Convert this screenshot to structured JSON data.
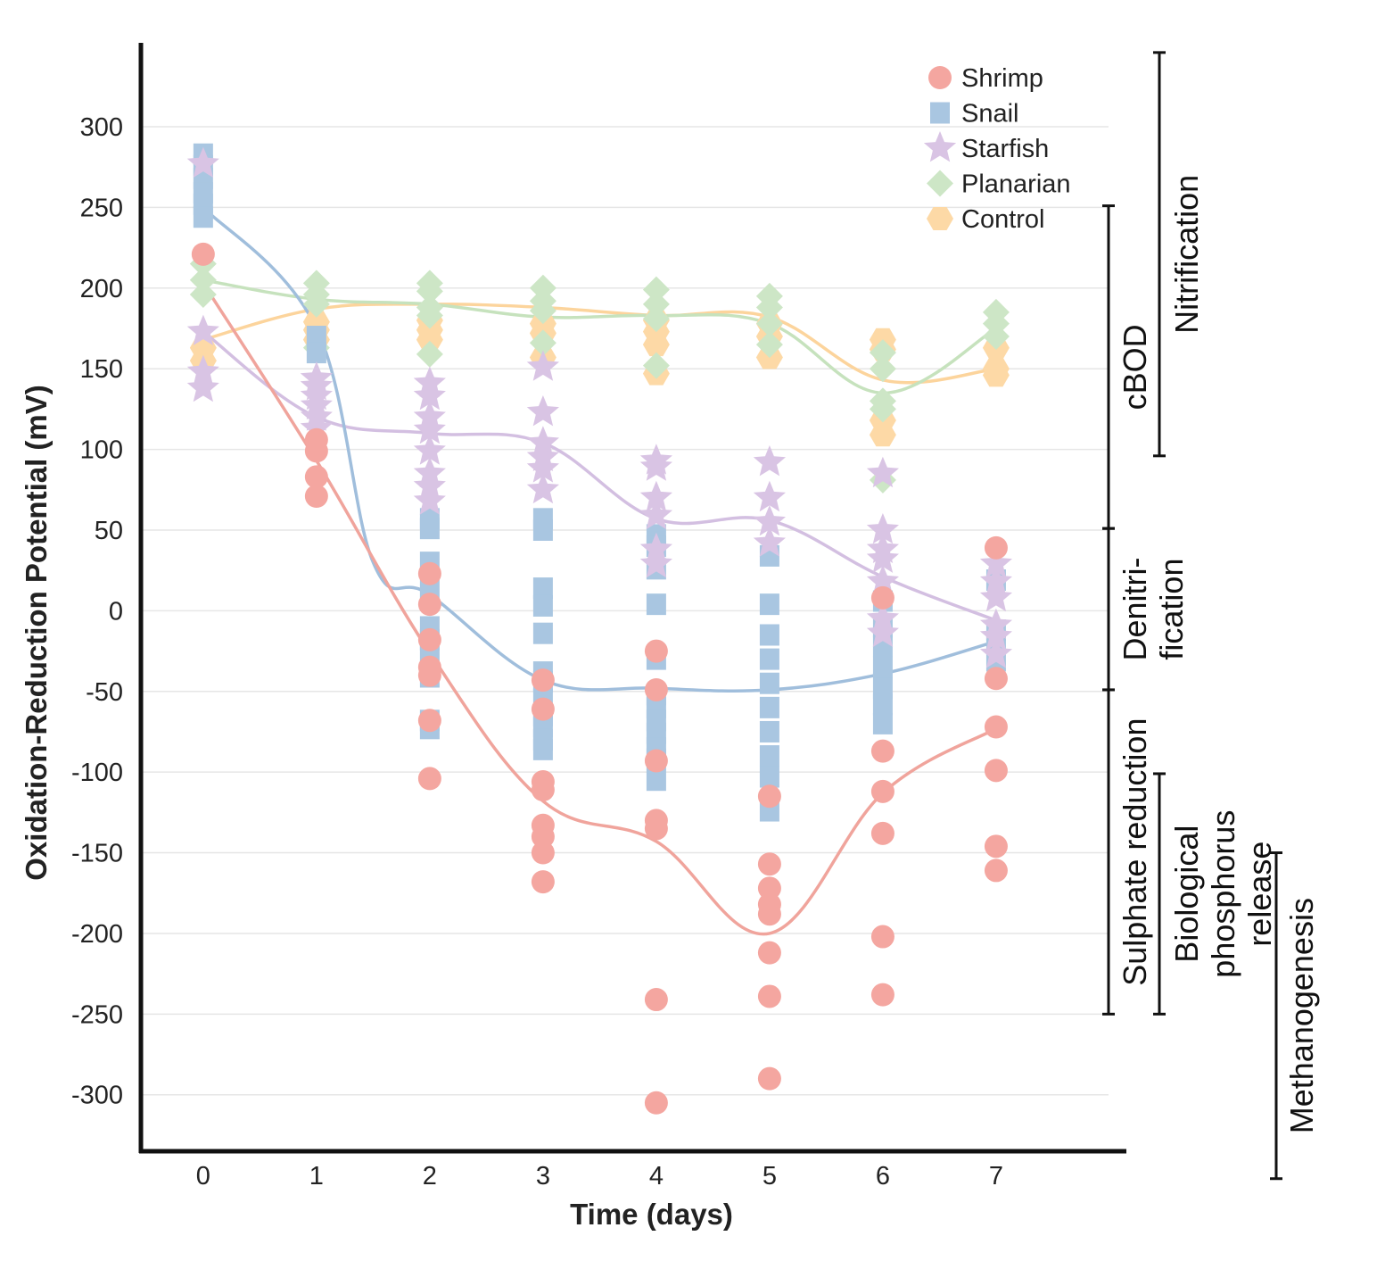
{
  "chart_data": {
    "type": "scatter",
    "xlabel": "Time (days)",
    "ylabel": "Oxidation-Reduction Potential (mV)",
    "xlim": [
      -0.55,
      8.15
    ],
    "ylim": [
      -335,
      352
    ],
    "x_ticks": [
      "0",
      "1",
      "2",
      "3",
      "4",
      "5",
      "6",
      "7"
    ],
    "y_ticks": [
      "300",
      "250",
      "200",
      "150",
      "100",
      "50",
      "0",
      "-50",
      "-100",
      "-150",
      "-200",
      "-250",
      "-300"
    ],
    "grid": true,
    "legend_position": "top-right",
    "series": [
      {
        "name": "Shrimp",
        "marker": "circle",
        "color": "#f4a6a0",
        "line_color": "#f0a49c",
        "points": [
          [
            0,
            221
          ],
          [
            1,
            106
          ],
          [
            1,
            99
          ],
          [
            1,
            83
          ],
          [
            1,
            71
          ],
          [
            2,
            23
          ],
          [
            2,
            4
          ],
          [
            2,
            -18
          ],
          [
            2,
            -35
          ],
          [
            2,
            -40
          ],
          [
            2,
            -68
          ],
          [
            2,
            -104
          ],
          [
            3,
            -43
          ],
          [
            3,
            -61
          ],
          [
            3,
            -106
          ],
          [
            3,
            -111
          ],
          [
            3,
            -133
          ],
          [
            3,
            -140
          ],
          [
            3,
            -150
          ],
          [
            3,
            -168
          ],
          [
            4,
            -25
          ],
          [
            4,
            -49
          ],
          [
            4,
            -93
          ],
          [
            4,
            -130
          ],
          [
            4,
            -135
          ],
          [
            4,
            -241
          ],
          [
            4,
            -305
          ],
          [
            5,
            -115
          ],
          [
            5,
            -157
          ],
          [
            5,
            -172
          ],
          [
            5,
            -182
          ],
          [
            5,
            -188
          ],
          [
            5,
            -212
          ],
          [
            5,
            -239
          ],
          [
            5,
            -290
          ],
          [
            6,
            8
          ],
          [
            6,
            -87
          ],
          [
            6,
            -112
          ],
          [
            6,
            -138
          ],
          [
            6,
            -202
          ],
          [
            6,
            -238
          ],
          [
            7,
            39
          ],
          [
            7,
            -42
          ],
          [
            7,
            -72
          ],
          [
            7,
            -99
          ],
          [
            7,
            -146
          ],
          [
            7,
            -161
          ]
        ],
        "trend": [
          [
            0,
            203
          ],
          [
            1,
            93
          ],
          [
            2,
            -26
          ],
          [
            3,
            -118
          ],
          [
            4,
            -143
          ],
          [
            5,
            -200
          ],
          [
            6,
            -113
          ],
          [
            7,
            -73
          ]
        ]
      },
      {
        "name": "Snail",
        "marker": "square",
        "color": "#a9c6e1",
        "line_color": "#a0bedc",
        "points": [
          [
            0,
            283
          ],
          [
            0,
            276
          ],
          [
            0,
            268
          ],
          [
            0,
            259
          ],
          [
            0,
            252
          ],
          [
            0,
            244
          ],
          [
            1,
            170
          ],
          [
            1,
            160
          ],
          [
            2,
            57
          ],
          [
            2,
            51
          ],
          [
            2,
            30
          ],
          [
            2,
            14
          ],
          [
            2,
            -10
          ],
          [
            2,
            -18
          ],
          [
            2,
            -26
          ],
          [
            2,
            -41
          ],
          [
            2,
            -68
          ],
          [
            2,
            -73
          ],
          [
            3,
            57
          ],
          [
            3,
            50
          ],
          [
            3,
            14
          ],
          [
            3,
            3
          ],
          [
            3,
            -14
          ],
          [
            3,
            -38
          ],
          [
            3,
            -44
          ],
          [
            3,
            -55
          ],
          [
            3,
            -65
          ],
          [
            3,
            -72
          ],
          [
            3,
            -80
          ],
          [
            3,
            -86
          ],
          [
            4,
            47
          ],
          [
            4,
            40
          ],
          [
            4,
            26
          ],
          [
            4,
            4
          ],
          [
            4,
            -30
          ],
          [
            4,
            -52
          ],
          [
            4,
            -60
          ],
          [
            4,
            -68
          ],
          [
            4,
            -76
          ],
          [
            4,
            -85
          ],
          [
            4,
            -92
          ],
          [
            4,
            -105
          ],
          [
            5,
            34
          ],
          [
            5,
            4
          ],
          [
            5,
            -15
          ],
          [
            5,
            -30
          ],
          [
            5,
            -45
          ],
          [
            5,
            -60
          ],
          [
            5,
            -75
          ],
          [
            5,
            -90
          ],
          [
            5,
            -103
          ],
          [
            5,
            -124
          ],
          [
            6,
            6
          ],
          [
            6,
            -10
          ],
          [
            6,
            -22
          ],
          [
            6,
            -35
          ],
          [
            6,
            -48
          ],
          [
            6,
            -58
          ],
          [
            6,
            -70
          ],
          [
            7,
            19
          ],
          [
            7,
            -12
          ],
          [
            7,
            -19
          ],
          [
            7,
            -31
          ]
        ],
        "trend": [
          [
            0,
            250
          ],
          [
            1,
            175
          ],
          [
            1.5,
            30
          ],
          [
            2,
            10
          ],
          [
            3,
            -43
          ],
          [
            4,
            -48
          ],
          [
            5,
            -49
          ],
          [
            6,
            -39
          ],
          [
            7,
            -19
          ]
        ]
      },
      {
        "name": "Starfish",
        "marker": "star",
        "color": "#d9c4e4",
        "line_color": "#d3bfe1",
        "points": [
          [
            0,
            277
          ],
          [
            0,
            173
          ],
          [
            0,
            148
          ],
          [
            0,
            138
          ],
          [
            1,
            144
          ],
          [
            1,
            139
          ],
          [
            1,
            133
          ],
          [
            1,
            127
          ],
          [
            1,
            120
          ],
          [
            1,
            113
          ],
          [
            2,
            141
          ],
          [
            2,
            133
          ],
          [
            2,
            120
          ],
          [
            2,
            112
          ],
          [
            2,
            99
          ],
          [
            2,
            85
          ],
          [
            2,
            77
          ],
          [
            2,
            68
          ],
          [
            3,
            151
          ],
          [
            3,
            123
          ],
          [
            3,
            104
          ],
          [
            3,
            95
          ],
          [
            3,
            88
          ],
          [
            3,
            75
          ],
          [
            4,
            93
          ],
          [
            4,
            89
          ],
          [
            4,
            70
          ],
          [
            4,
            59
          ],
          [
            4,
            38
          ],
          [
            4,
            29
          ],
          [
            5,
            92
          ],
          [
            5,
            70
          ],
          [
            5,
            55
          ],
          [
            5,
            42
          ],
          [
            6,
            85
          ],
          [
            6,
            50
          ],
          [
            6,
            38
          ],
          [
            6,
            32
          ],
          [
            6,
            18
          ],
          [
            6,
            -5
          ],
          [
            6,
            -14
          ],
          [
            7,
            29
          ],
          [
            7,
            18
          ],
          [
            7,
            8
          ],
          [
            7,
            -9
          ],
          [
            7,
            -16
          ],
          [
            7,
            -27
          ]
        ],
        "trend": [
          [
            0,
            173
          ],
          [
            1,
            120
          ],
          [
            2,
            110
          ],
          [
            3,
            104
          ],
          [
            4,
            57
          ],
          [
            5,
            56
          ],
          [
            6,
            21
          ],
          [
            7,
            -6
          ]
        ]
      },
      {
        "name": "Planarian",
        "marker": "diamond",
        "color": "#cde6c6",
        "line_color": "#c6e2bd",
        "points": [
          [
            0,
            215
          ],
          [
            0,
            205
          ],
          [
            0,
            196
          ],
          [
            1,
            203
          ],
          [
            1,
            196
          ],
          [
            1,
            190
          ],
          [
            1,
            163
          ],
          [
            2,
            203
          ],
          [
            2,
            198
          ],
          [
            2,
            188
          ],
          [
            2,
            183
          ],
          [
            2,
            159
          ],
          [
            3,
            200
          ],
          [
            3,
            192
          ],
          [
            3,
            186
          ],
          [
            3,
            166
          ],
          [
            4,
            199
          ],
          [
            4,
            190
          ],
          [
            4,
            181
          ],
          [
            4,
            152
          ],
          [
            5,
            195
          ],
          [
            5,
            188
          ],
          [
            5,
            178
          ],
          [
            5,
            165
          ],
          [
            6,
            160
          ],
          [
            6,
            150
          ],
          [
            6,
            130
          ],
          [
            6,
            125
          ],
          [
            6,
            81
          ],
          [
            7,
            185
          ],
          [
            7,
            178
          ],
          [
            7,
            170
          ]
        ],
        "trend": [
          [
            0,
            205
          ],
          [
            1,
            193
          ],
          [
            2,
            190
          ],
          [
            3,
            182
          ],
          [
            4,
            183
          ],
          [
            5,
            178
          ],
          [
            6,
            135
          ],
          [
            7,
            175
          ]
        ]
      },
      {
        "name": "Control",
        "marker": "hexagon",
        "color": "#fdd9a6",
        "line_color": "#fcd49c",
        "points": [
          [
            0,
            163
          ],
          [
            0,
            155
          ],
          [
            1,
            179
          ],
          [
            1,
            174
          ],
          [
            1,
            168
          ],
          [
            2,
            180
          ],
          [
            2,
            174
          ],
          [
            2,
            168
          ],
          [
            3,
            178
          ],
          [
            3,
            172
          ],
          [
            3,
            157
          ],
          [
            4,
            180
          ],
          [
            4,
            173
          ],
          [
            4,
            165
          ],
          [
            4,
            147
          ],
          [
            5,
            178
          ],
          [
            5,
            170
          ],
          [
            5,
            157
          ],
          [
            6,
            168
          ],
          [
            6,
            162
          ],
          [
            6,
            118
          ],
          [
            6,
            109
          ],
          [
            7,
            163
          ],
          [
            7,
            150
          ],
          [
            7,
            146
          ]
        ],
        "trend": [
          [
            0,
            168
          ],
          [
            1,
            187
          ],
          [
            2,
            190
          ],
          [
            3,
            188
          ],
          [
            4,
            183
          ],
          [
            5,
            182
          ],
          [
            6,
            143
          ],
          [
            7,
            150
          ]
        ]
      }
    ],
    "zones": [
      {
        "label": "Nitrification",
        "y_top": 346,
        "y_bottom": 96,
        "column": 2
      },
      {
        "label": "cBOD",
        "y_top": 251,
        "y_bottom": 51,
        "column": 1
      },
      {
        "label": "Denitri-\nfication",
        "y_top": 51,
        "y_bottom": -49,
        "column": 1
      },
      {
        "label": "Sulphate reduction",
        "y_top": -49,
        "y_bottom": -250,
        "column": 1
      },
      {
        "label": "Biological\nphosphorus\nrelease",
        "y_top": -101,
        "y_bottom": -250,
        "column": 2
      },
      {
        "label": "Methanogenesis",
        "y_top": -150,
        "y_bottom": -352,
        "column": 3
      }
    ]
  }
}
